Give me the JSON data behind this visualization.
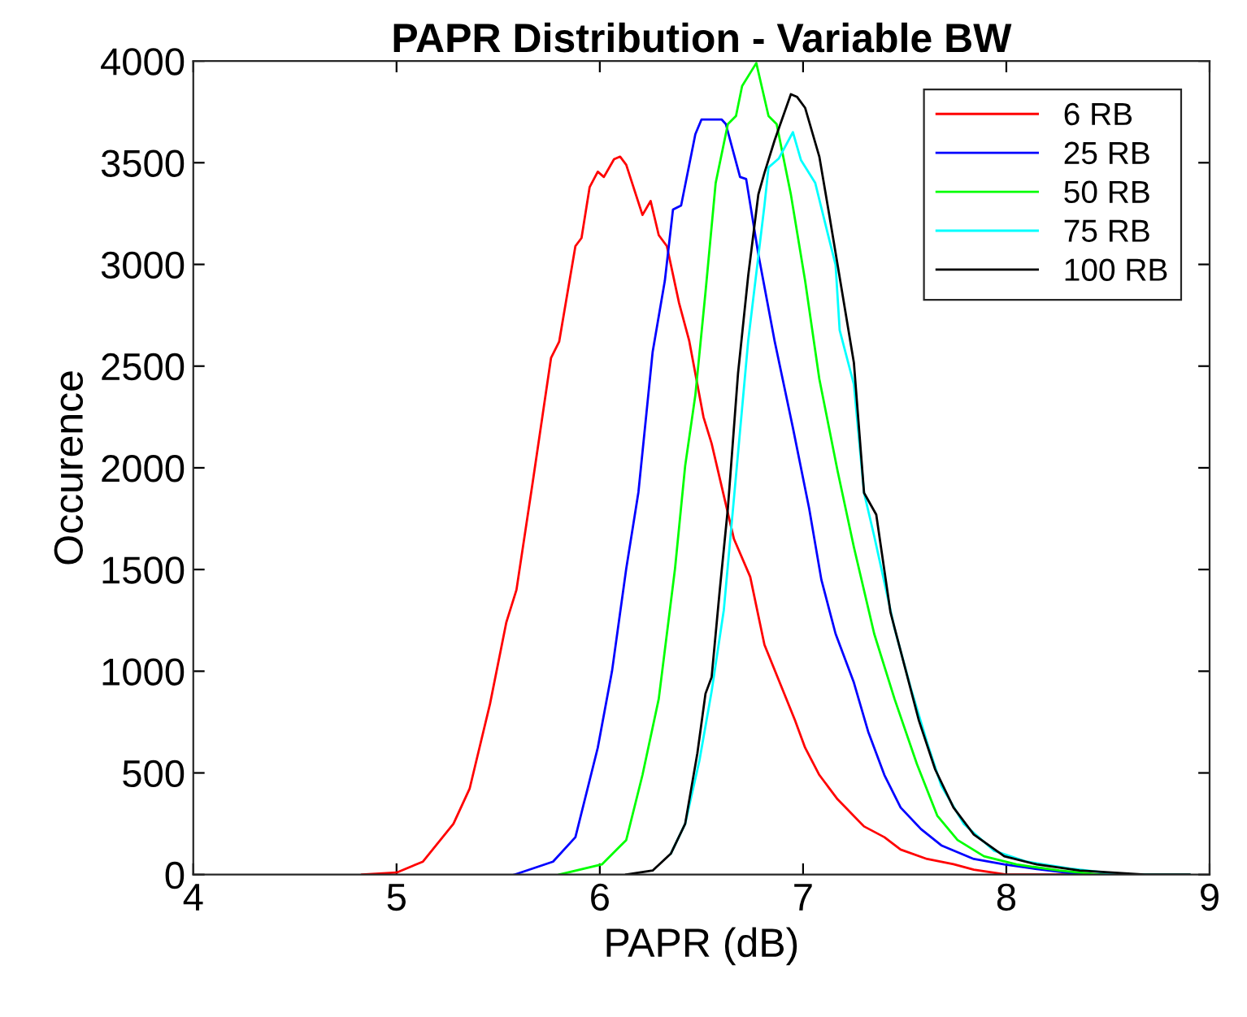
{
  "chart_data": {
    "type": "line",
    "title": "PAPR Distribution - Variable BW",
    "xlabel": "PAPR (dB)",
    "ylabel": "Occurence",
    "xlim": [
      4,
      9
    ],
    "xticks": [
      4,
      5,
      6,
      7,
      8,
      9
    ],
    "ylim": [
      0,
      4000
    ],
    "yticks": [
      0,
      500,
      1000,
      1500,
      2000,
      2500,
      3000,
      3500,
      4000
    ],
    "grid": false,
    "legend": "top right",
    "marker": "none",
    "line_style": "solid",
    "series": [
      {
        "name": "6 RB",
        "color": "#ff0000",
        "x": [
          4.83,
          5.0,
          5.13,
          5.28,
          5.36,
          5.46,
          5.54,
          5.59,
          5.67,
          5.76,
          5.8,
          5.88,
          5.91,
          5.95,
          5.99,
          6.02,
          6.07,
          6.1,
          6.13,
          6.21,
          6.25,
          6.29,
          6.33,
          6.39,
          6.44,
          6.51,
          6.55,
          6.66,
          6.74,
          6.81,
          6.96,
          7.01,
          7.08,
          7.17,
          7.3,
          7.4,
          7.48,
          7.61,
          7.74,
          7.84,
          8.0,
          8.5,
          8.9
        ],
        "values": [
          0,
          10,
          64,
          250,
          424,
          840,
          1240,
          1400,
          1930,
          2540,
          2620,
          3090,
          3130,
          3380,
          3456,
          3430,
          3517,
          3530,
          3490,
          3243,
          3312,
          3144,
          3090,
          2810,
          2624,
          2250,
          2120,
          1650,
          1464,
          1130,
          760,
          624,
          490,
          370,
          237,
          184,
          123,
          77,
          51,
          24,
          0,
          0,
          0
        ]
      },
      {
        "name": "25 RB",
        "color": "#0000ff",
        "x": [
          5.58,
          5.77,
          5.88,
          5.99,
          6.06,
          6.13,
          6.19,
          6.26,
          6.32,
          6.36,
          6.4,
          6.47,
          6.5,
          6.6,
          6.62,
          6.69,
          6.72,
          6.78,
          6.86,
          6.95,
          7.03,
          7.09,
          7.16,
          7.25,
          7.32,
          7.4,
          7.48,
          7.58,
          7.68,
          7.84,
          7.99,
          8.15,
          8.38,
          8.9
        ],
        "values": [
          0,
          64,
          184,
          624,
          1000,
          1504,
          1880,
          2570,
          2920,
          3270,
          3290,
          3640,
          3712,
          3712,
          3690,
          3430,
          3420,
          3050,
          2624,
          2197,
          1800,
          1450,
          1184,
          944,
          704,
          490,
          330,
          224,
          144,
          77,
          50,
          27,
          0,
          0
        ]
      },
      {
        "name": "50 RB",
        "color": "#00ff00",
        "x": [
          5.8,
          6.01,
          6.13,
          6.21,
          6.29,
          6.37,
          6.42,
          6.47,
          6.52,
          6.57,
          6.63,
          6.67,
          6.7,
          6.77,
          6.83,
          6.87,
          6.94,
          7.01,
          7.08,
          7.17,
          7.25,
          7.35,
          7.45,
          7.56,
          7.66,
          7.76,
          7.89,
          8.05,
          8.26,
          8.46,
          8.9
        ],
        "values": [
          0,
          50,
          170,
          490,
          864,
          1504,
          2010,
          2357,
          2864,
          3400,
          3690,
          3730,
          3877,
          3990,
          3730,
          3690,
          3344,
          2920,
          2437,
          1984,
          1610,
          1184,
          864,
          544,
          290,
          170,
          90,
          50,
          20,
          0,
          0
        ]
      },
      {
        "name": "75 RB",
        "color": "#00ffff",
        "x": [
          6.35,
          6.42,
          6.49,
          6.55,
          6.61,
          6.66,
          6.73,
          6.81,
          6.83,
          6.88,
          6.95,
          6.99,
          7.06,
          7.12,
          7.16,
          7.18,
          7.25,
          7.3,
          7.35,
          7.45,
          7.53,
          7.61,
          7.68,
          7.79,
          7.94,
          8.1,
          8.31,
          8.57,
          8.9
        ],
        "values": [
          104,
          250,
          560,
          900,
          1300,
          1850,
          2624,
          3290,
          3477,
          3520,
          3650,
          3512,
          3400,
          3157,
          2997,
          2677,
          2410,
          1877,
          1664,
          1210,
          917,
          650,
          437,
          250,
          117,
          64,
          30,
          0,
          0
        ]
      },
      {
        "name": "100 RB",
        "color": "#000000",
        "x": [
          6.13,
          6.26,
          6.35,
          6.42,
          6.48,
          6.52,
          6.55,
          6.59,
          6.63,
          6.68,
          6.73,
          6.78,
          6.81,
          6.86,
          6.94,
          6.97,
          7.01,
          7.08,
          7.13,
          7.17,
          7.25,
          7.3,
          7.36,
          7.43,
          7.5,
          7.57,
          7.65,
          7.74,
          7.84,
          7.99,
          8.15,
          8.36,
          8.68,
          8.9
        ],
        "values": [
          0,
          20,
          104,
          250,
          597,
          890,
          970,
          1397,
          1800,
          2464,
          2944,
          3344,
          3450,
          3610,
          3837,
          3824,
          3770,
          3530,
          3237,
          2997,
          2517,
          1877,
          1770,
          1290,
          1024,
          757,
          517,
          330,
          197,
          90,
          50,
          20,
          0,
          0
        ]
      }
    ]
  }
}
